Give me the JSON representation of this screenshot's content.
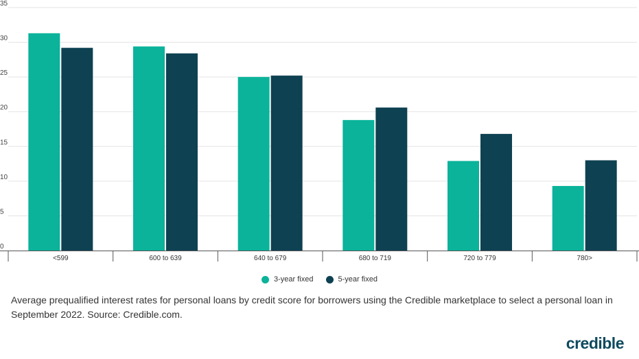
{
  "chart_data": {
    "type": "bar",
    "categories": [
      "<599",
      "600 to 639",
      "640 to 679",
      "680 to 719",
      "720 to 779",
      "780>"
    ],
    "series": [
      {
        "name": "3-year fixed",
        "color": "#0ab39a",
        "values": [
          31.3,
          29.4,
          25.0,
          18.8,
          12.9,
          9.3
        ]
      },
      {
        "name": "5-year fixed",
        "color": "#0e4151",
        "values": [
          29.2,
          28.4,
          25.2,
          20.6,
          16.8,
          13.0
        ]
      }
    ],
    "ylim": [
      0,
      35
    ],
    "yticks": [
      "0",
      "5",
      "10",
      "15",
      "20",
      "25",
      "30",
      "35"
    ],
    "grid": true,
    "legend_position": "bottom"
  },
  "caption": "Average prequalified interest rates for personal loans by credit score for borrowers using the Credible marketplace to select a personal loan in September 2022. Source: Credible.com.",
  "logo_text": "credible"
}
